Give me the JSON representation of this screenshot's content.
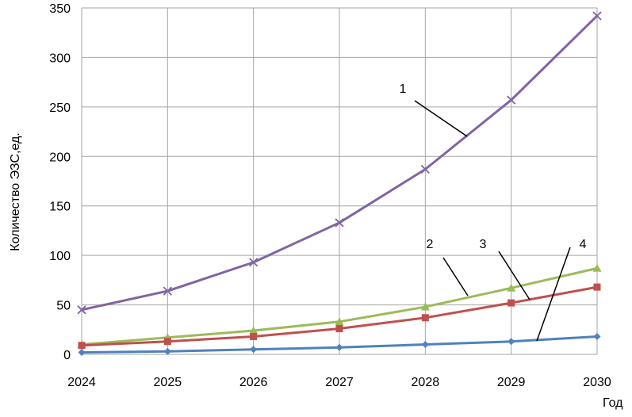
{
  "chart_data": {
    "type": "line",
    "xlabel": "Год",
    "ylabel": "Количество ЭЗС,ед.",
    "x": [
      2024,
      2025,
      2026,
      2027,
      2028,
      2029,
      2030
    ],
    "xlim": [
      2024,
      2030
    ],
    "ylim": [
      0,
      350
    ],
    "yticks": [
      0,
      50,
      100,
      150,
      200,
      250,
      300,
      350
    ],
    "grid": true,
    "series": [
      {
        "label": "1",
        "color": "#8064a2",
        "marker": "x",
        "values": [
          45,
          64,
          93,
          133,
          187,
          257,
          342
        ]
      },
      {
        "label": "2",
        "color": "#9bbb59",
        "marker": "triangle",
        "values": [
          10,
          17,
          24,
          33,
          48,
          67,
          87
        ]
      },
      {
        "label": "3",
        "color": "#c0504d",
        "marker": "square",
        "values": [
          9,
          13,
          18,
          26,
          37,
          52,
          68
        ]
      },
      {
        "label": "4",
        "color": "#4f81bd",
        "marker": "diamond",
        "values": [
          2,
          3,
          5,
          7,
          10,
          13,
          18
        ]
      }
    ]
  }
}
